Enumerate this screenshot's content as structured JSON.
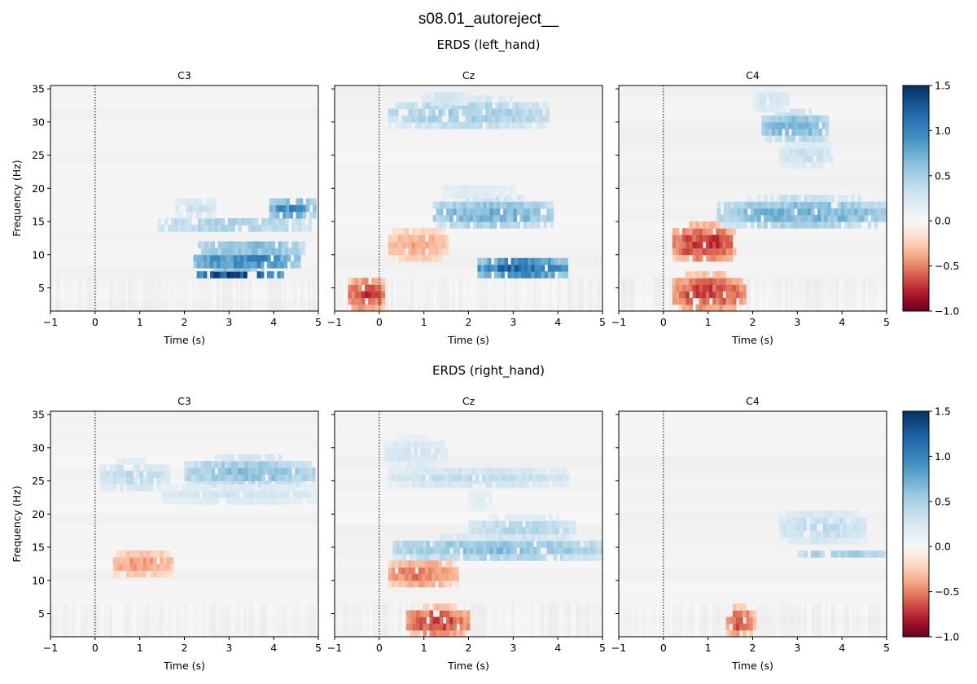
{
  "suptitle": "s08.01_autoreject__",
  "colormap": "RdBu",
  "colormap_stops": [
    "#67001f",
    "#b2182b",
    "#d6604d",
    "#f4a582",
    "#fddbc7",
    "#f7f7f7",
    "#d1e5f0",
    "#92c5de",
    "#4393c3",
    "#2166ac",
    "#053061"
  ],
  "chart_data": [
    {
      "type": "heatmap",
      "title": "ERDS (left_hand)",
      "xlabel": "Time (s)",
      "ylabel": "Frequency (Hz)",
      "xlim": [
        -1,
        5
      ],
      "ylim": [
        1.5,
        35.5
      ],
      "xticks": [
        "−1",
        "0",
        "1",
        "2",
        "3",
        "4",
        "5"
      ],
      "yticks": [
        "5",
        "10",
        "15",
        "20",
        "25",
        "30",
        "35"
      ],
      "event_line_x": 0,
      "colorbar": {
        "vmin": -1.0,
        "vmax": 1.5,
        "ticks": [
          "1.5",
          "1.0",
          "0.5",
          "0.0",
          "−0.5",
          "−1.0"
        ]
      },
      "panels": [
        {
          "channel": "C3",
          "blobs": [
            {
              "t": [
                2.2,
                4.2
              ],
              "f": [
                6.5,
                8
              ],
              "v": 1.45
            },
            {
              "t": [
                2.2,
                4.6
              ],
              "f": [
                8,
                10
              ],
              "v": 1.15
            },
            {
              "t": [
                2.3,
                4.7
              ],
              "f": [
                10,
                12
              ],
              "v": 0.75
            },
            {
              "t": [
                1.4,
                4.8
              ],
              "f": [
                13.5,
                15.5
              ],
              "v": 0.55
            },
            {
              "t": [
                1.8,
                2.7
              ],
              "f": [
                15.5,
                18.5
              ],
              "v": 0.35
            },
            {
              "t": [
                3.9,
                4.9
              ],
              "f": [
                15.5,
                18.5
              ],
              "v": 1.0
            }
          ]
        },
        {
          "channel": "Cz",
          "blobs": [
            {
              "t": [
                -0.7,
                0.1
              ],
              "f": [
                1.5,
                6.5
              ],
              "v": -0.7
            },
            {
              "t": [
                0.2,
                1.5
              ],
              "f": [
                9,
                14
              ],
              "v": -0.4
            },
            {
              "t": [
                2.2,
                4.2
              ],
              "f": [
                6.5,
                9.5
              ],
              "v": 1.25
            },
            {
              "t": [
                1.2,
                3.9
              ],
              "f": [
                14,
                18.5
              ],
              "v": 0.75
            },
            {
              "t": [
                1.4,
                3.0
              ],
              "f": [
                18.5,
                20.5
              ],
              "v": 0.25
            },
            {
              "t": [
                0.2,
                3.8
              ],
              "f": [
                29,
                33.5
              ],
              "v": 0.55
            },
            {
              "t": [
                1.0,
                2.0
              ],
              "f": [
                32.5,
                34.5
              ],
              "v": 0.35
            }
          ]
        },
        {
          "channel": "C4",
          "blobs": [
            {
              "t": [
                0.2,
                1.8
              ],
              "f": [
                1.5,
                7
              ],
              "v": -0.7
            },
            {
              "t": [
                0.2,
                1.6
              ],
              "f": [
                9,
                14.5
              ],
              "v": -0.75
            },
            {
              "t": [
                1.2,
                5.0
              ],
              "f": [
                14,
                18.5
              ],
              "v": 0.75
            },
            {
              "t": [
                2.2,
                3.7
              ],
              "f": [
                27,
                31.5
              ],
              "v": 0.75
            },
            {
              "t": [
                2.6,
                3.8
              ],
              "f": [
                23,
                27
              ],
              "v": 0.35
            },
            {
              "t": [
                2.0,
                2.8
              ],
              "f": [
                31.5,
                35
              ],
              "v": 0.3
            }
          ]
        }
      ]
    },
    {
      "type": "heatmap",
      "title": "ERDS (right_hand)",
      "xlabel": "Time (s)",
      "ylabel": "Frequency (Hz)",
      "xlim": [
        -1,
        5
      ],
      "ylim": [
        1.5,
        35.5
      ],
      "xticks": [
        "−1",
        "0",
        "1",
        "2",
        "3",
        "4",
        "5"
      ],
      "yticks": [
        "5",
        "10",
        "15",
        "20",
        "25",
        "30",
        "35"
      ],
      "event_line_x": 0,
      "colorbar": {
        "vmin": -1.0,
        "vmax": 1.5,
        "ticks": [
          "1.5",
          "1.0",
          "0.5",
          "0.0",
          "−0.5",
          "−1.0"
        ]
      },
      "panels": [
        {
          "channel": "C3",
          "blobs": [
            {
              "t": [
                0.1,
                1.6
              ],
              "f": [
                23.5,
                28
              ],
              "v": 0.4
            },
            {
              "t": [
                2.0,
                4.9
              ],
              "f": [
                24,
                28.5
              ],
              "v": 0.65
            },
            {
              "t": [
                1.5,
                4.9
              ],
              "f": [
                21.5,
                24.5
              ],
              "v": 0.3
            },
            {
              "t": [
                0.4,
                1.7
              ],
              "f": [
                10.5,
                14.5
              ],
              "v": -0.45
            }
          ]
        },
        {
          "channel": "Cz",
          "blobs": [
            {
              "t": [
                0.2,
                4.2
              ],
              "f": [
                24,
                27
              ],
              "v": 0.4
            },
            {
              "t": [
                0.1,
                1.5
              ],
              "f": [
                27,
                31.5
              ],
              "v": 0.3
            },
            {
              "t": [
                2.0,
                2.5
              ],
              "f": [
                20.5,
                24
              ],
              "v": 0.2
            },
            {
              "t": [
                0.3,
                5.0
              ],
              "f": [
                13,
                16.5
              ],
              "v": 0.65
            },
            {
              "t": [
                2.0,
                4.4
              ],
              "f": [
                16,
                19.5
              ],
              "v": 0.45
            },
            {
              "t": [
                0.2,
                1.7
              ],
              "f": [
                9,
                13
              ],
              "v": -0.55
            },
            {
              "t": [
                0.6,
                2.0
              ],
              "f": [
                1.5,
                6
              ],
              "v": -0.7
            }
          ]
        },
        {
          "channel": "C4",
          "blobs": [
            {
              "t": [
                2.6,
                4.5
              ],
              "f": [
                15.5,
                20.5
              ],
              "v": 0.4
            },
            {
              "t": [
                3.0,
                5.0
              ],
              "f": [
                13.5,
                14.8
              ],
              "v": 0.55
            },
            {
              "t": [
                1.4,
                2.0
              ],
              "f": [
                1.5,
                6
              ],
              "v": -0.65
            }
          ]
        }
      ]
    }
  ]
}
